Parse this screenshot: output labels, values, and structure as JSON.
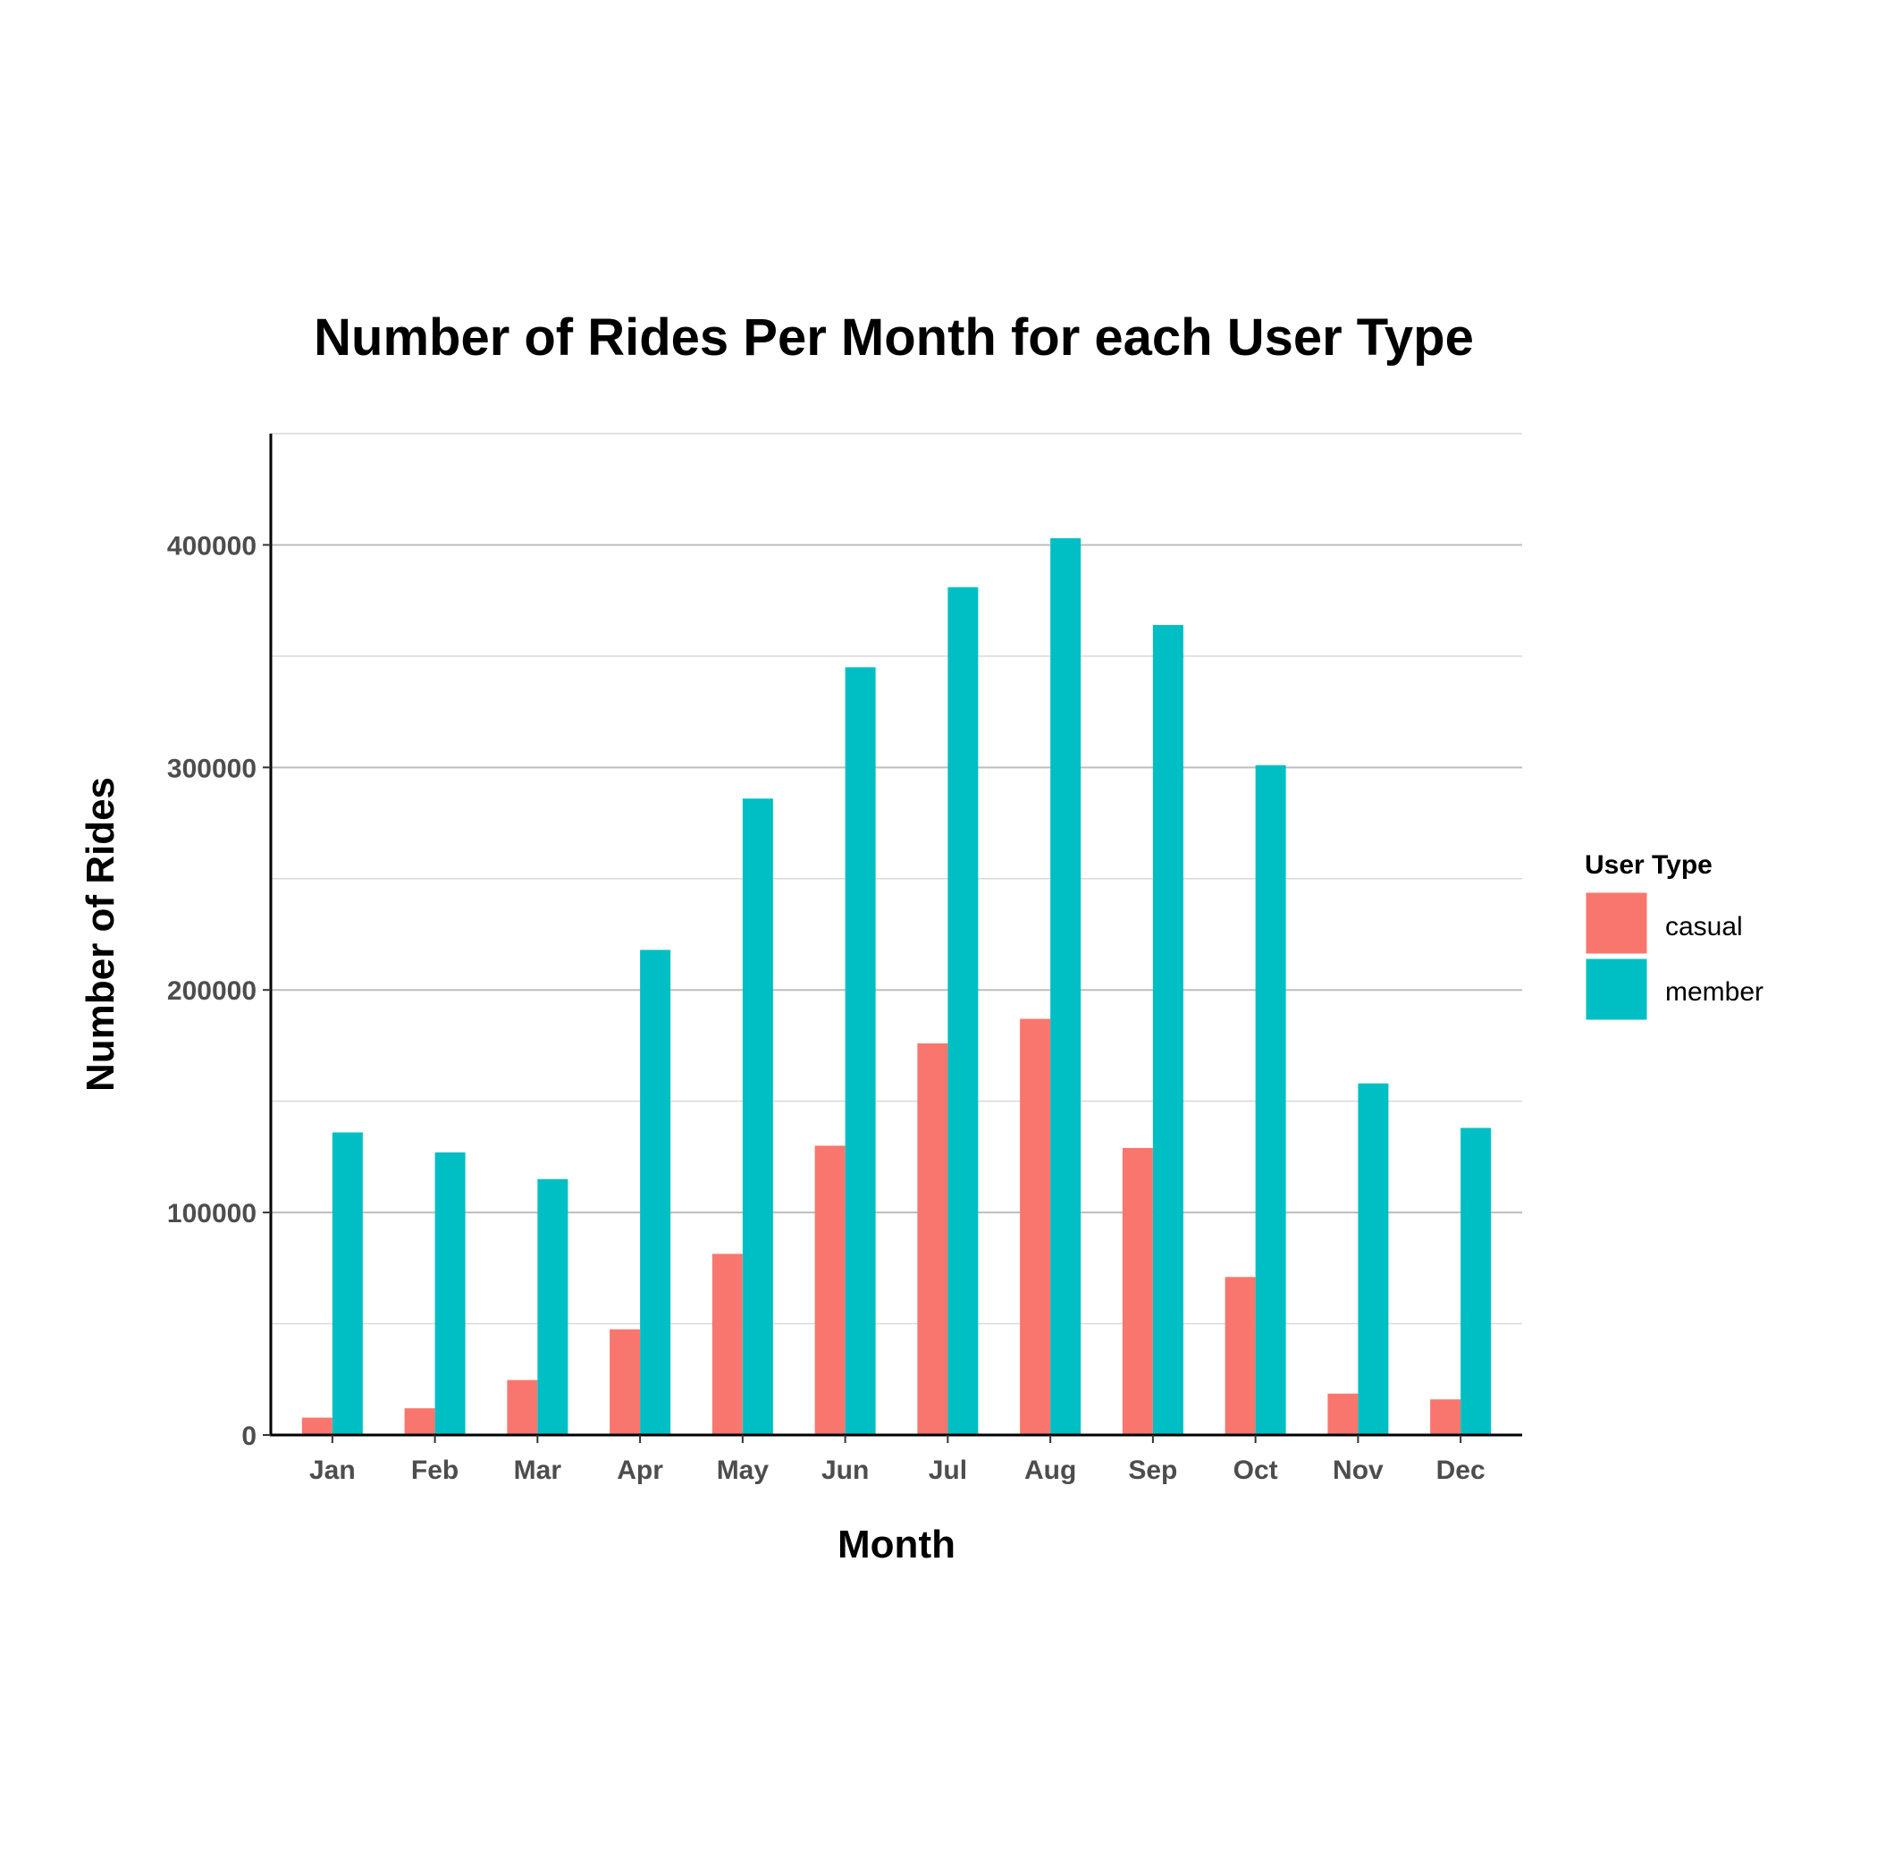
{
  "chart_data": {
    "type": "bar",
    "title": "Number of Rides Per Month for each User Type",
    "xlabel": "Month",
    "ylabel": "Number of Rides",
    "categories": [
      "Jan",
      "Feb",
      "Mar",
      "Apr",
      "May",
      "Jun",
      "Jul",
      "Aug",
      "Sep",
      "Oct",
      "Nov",
      "Dec"
    ],
    "series": [
      {
        "name": "casual",
        "color": "#F8766D",
        "values": [
          7800,
          12000,
          24700,
          47500,
          81400,
          130000,
          176000,
          187000,
          129000,
          71000,
          18600,
          16000
        ]
      },
      {
        "name": "member",
        "color": "#00BFC4",
        "values": [
          136000,
          127000,
          115000,
          218000,
          286000,
          345000,
          381000,
          403000,
          364000,
          301000,
          158000,
          138000
        ]
      }
    ],
    "ylim": [
      0,
      450000
    ],
    "yticks": [
      "0",
      "100000",
      "200000",
      "300000",
      "400000"
    ],
    "legend": {
      "title": "User Type",
      "position": "right"
    },
    "grid": true
  }
}
